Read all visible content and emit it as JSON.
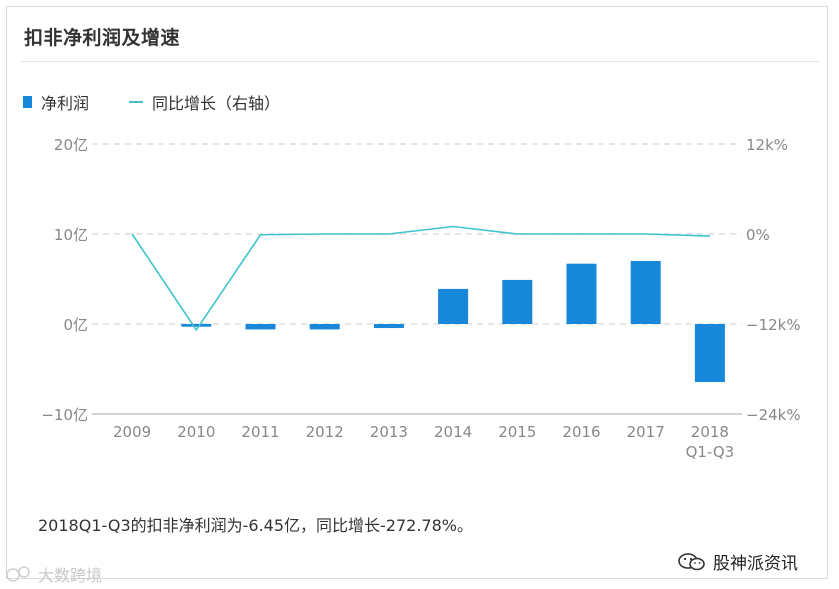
{
  "title": "扣非净利润及增速",
  "legend": {
    "bar_label": "净利润",
    "line_label": "同比增长（右轴）"
  },
  "colors": {
    "bar": "#1787d9",
    "line": "#3dc4cc",
    "grid": "#d6d6d6",
    "axis_text": "#888888"
  },
  "chart_data": {
    "type": "bar",
    "categories": [
      "2009",
      "2010",
      "2011",
      "2012",
      "2013",
      "2014",
      "2015",
      "2016",
      "2017",
      "2018\nQ1-Q3"
    ],
    "series": [
      {
        "name": "净利润",
        "type": "bar",
        "axis": "left",
        "values": [
          null,
          -0.3,
          -0.6,
          -0.6,
          -0.45,
          3.9,
          4.9,
          6.7,
          7.0,
          -6.45
        ]
      },
      {
        "name": "同比增长（右轴）",
        "type": "line",
        "axis": "right",
        "values": [
          0.0,
          -12.8,
          -0.1,
          0.0,
          0.0,
          1.0,
          0.0,
          0.0,
          0.0,
          -0.27
        ]
      }
    ],
    "y_left": {
      "ticks": [
        "20亿",
        "10亿",
        "0亿",
        "−10亿"
      ],
      "tick_values": [
        20,
        10,
        0,
        -10
      ],
      "range": [
        -10,
        20
      ]
    },
    "y_right": {
      "ticks": [
        "12k%",
        "0%",
        "−12k%",
        "−24k%"
      ],
      "tick_values": [
        12,
        0,
        -12,
        -24
      ],
      "range": [
        -24,
        12
      ]
    },
    "grid": true,
    "legend_position": "top-left"
  },
  "summary": "2018Q1-Q3的扣非净利润为-6.45亿，同比增长-272.78%。",
  "brand": "股神派资讯",
  "watermark": "大数跨境"
}
